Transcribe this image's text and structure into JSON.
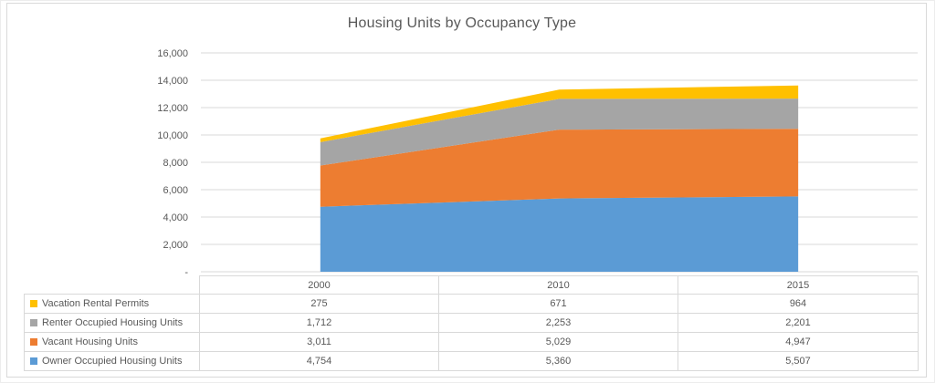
{
  "title": "Housing Units by Occupancy Type",
  "colors": {
    "background": "#FFFFFF",
    "frame_border": "#D9D9D9",
    "gridline": "#D9D9D9",
    "axis_line": "#D9D9D9",
    "axis_text": "#595959",
    "title_text": "#595959",
    "table_border": "#D9D9D9",
    "table_text": "#595959"
  },
  "chart_data": {
    "type": "area",
    "stacked": true,
    "title": "Housing Units by Occupancy Type",
    "categories": [
      "2000",
      "2010",
      "2015"
    ],
    "series": [
      {
        "key": "owner-occupied",
        "name": "Owner Occupied Housing Units",
        "color": "#5B9BD5",
        "values": [
          4754,
          5360,
          5507
        ]
      },
      {
        "key": "vacant",
        "name": "Vacant Housing Units",
        "color": "#ED7D31",
        "values": [
          3011,
          5029,
          4947
        ]
      },
      {
        "key": "renter-occupied",
        "name": "Renter Occupied Housing Units",
        "color": "#A5A5A5",
        "values": [
          1712,
          2253,
          2201
        ]
      },
      {
        "key": "vacation-rental",
        "name": "Vacation Rental Permits",
        "color": "#FFC000",
        "values": [
          275,
          671,
          964
        ]
      }
    ],
    "series_order_note": "listed bottom-to-top of stack",
    "xlabel": "",
    "ylabel": "",
    "ylim": [
      0,
      16000
    ],
    "ytick_step": 2000,
    "grid": true,
    "legend_position": "data-table-below"
  },
  "y_axis": {
    "ticks": [
      {
        "value": 16000,
        "label": "16,000"
      },
      {
        "value": 14000,
        "label": "14,000"
      },
      {
        "value": 12000,
        "label": "12,000"
      },
      {
        "value": 10000,
        "label": "10,000"
      },
      {
        "value": 8000,
        "label": "8,000"
      },
      {
        "value": 6000,
        "label": "6,000"
      },
      {
        "value": 4000,
        "label": "4,000"
      },
      {
        "value": 2000,
        "label": "2,000"
      },
      {
        "value": 0,
        "label": "-"
      }
    ]
  },
  "table": {
    "col_headers": [
      "2000",
      "2010",
      "2015"
    ],
    "rows": [
      {
        "label": "Vacation Rental Permits",
        "swatch_color": "#FFC000",
        "values": [
          "275",
          "671",
          "964"
        ]
      },
      {
        "label": "Renter Occupied Housing Units",
        "swatch_color": "#A5A5A5",
        "values": [
          "1,712",
          "2,253",
          "2,201"
        ]
      },
      {
        "label": "Vacant Housing Units",
        "swatch_color": "#ED7D31",
        "values": [
          "3,011",
          "5,029",
          "4,947"
        ]
      },
      {
        "label": "Owner Occupied Housing Units",
        "swatch_color": "#5B9BD5",
        "values": [
          "4,754",
          "5,360",
          "5,507"
        ]
      }
    ]
  }
}
